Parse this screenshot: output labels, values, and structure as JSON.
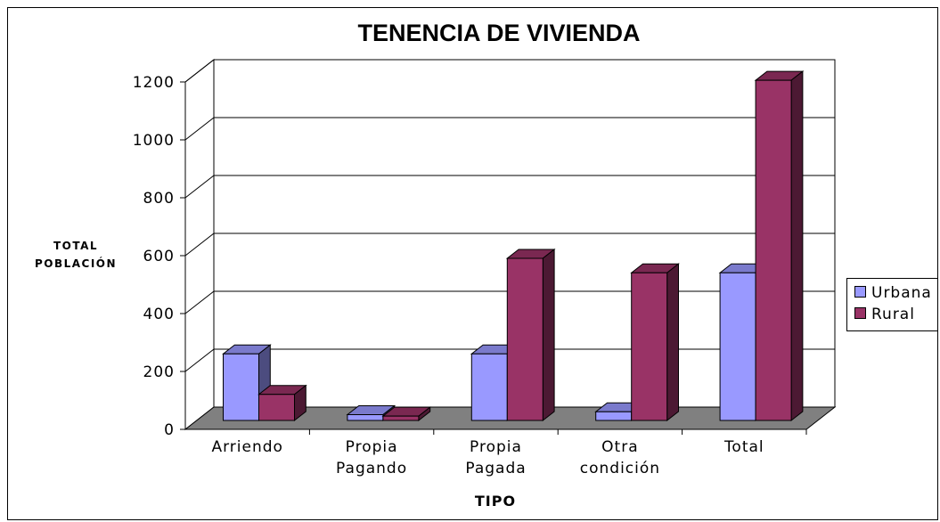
{
  "chart_data": {
    "type": "bar3d",
    "title": "TENENCIA DE VIVIENDA",
    "x_label": "TIPO",
    "y_label": "TOTAL POBLACIÓN",
    "categories": [
      "Arriendo",
      "Propia Pagando",
      "Propia Pagada",
      "Otra condición",
      "Total"
    ],
    "series": [
      {
        "name": "Urbana",
        "color": "#9999ff",
        "values": [
          230,
          20,
          230,
          30,
          510
        ]
      },
      {
        "name": "Rural",
        "color": "#993366",
        "values": [
          90,
          15,
          560,
          510,
          1175
        ]
      }
    ],
    "ylim": [
      0,
      1200
    ],
    "yticks": [
      0,
      200,
      400,
      600,
      800,
      1000,
      1200
    ],
    "grid": true,
    "legend": "right"
  }
}
